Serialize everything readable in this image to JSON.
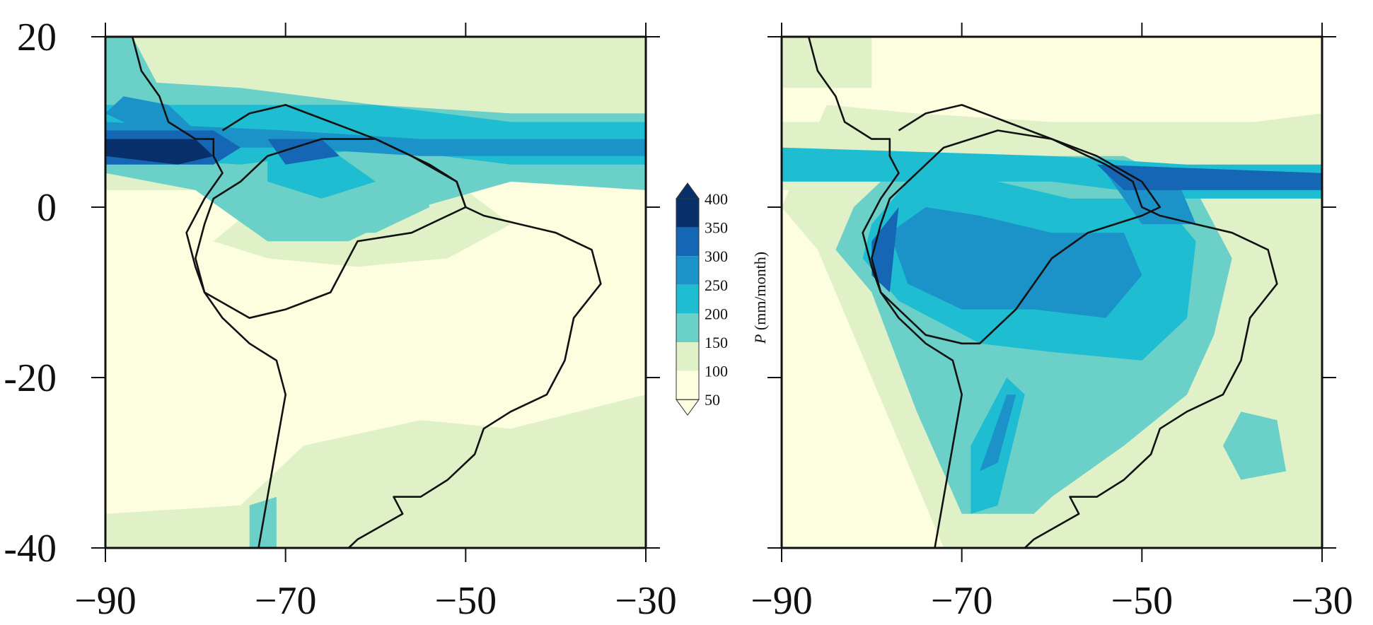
{
  "colors": {
    "background": "#ffffff",
    "frame": "#111111",
    "coastline": "#111111",
    "levels": [
      "#fdfde0",
      "#e0f1c8",
      "#6ad0c8",
      "#1fbdd1",
      "#1c93c8",
      "#1567b6",
      "#08306b"
    ]
  },
  "colorbar": {
    "title_var": "P",
    "title_unit": " (mm/month)",
    "tick_labels": [
      "50",
      "100",
      "150",
      "200",
      "250",
      "300",
      "350",
      "400"
    ],
    "extend": "both"
  },
  "axes": {
    "x_tick_labels": [
      "−90",
      "−70",
      "−50",
      "−30"
    ],
    "y_tick_labels": [
      "20",
      "0",
      "-20",
      "-40"
    ]
  },
  "chart_data": [
    {
      "type": "heatmap",
      "panel": "left",
      "xlim": [
        -90,
        -30
      ],
      "ylim": [
        -40,
        20
      ],
      "xticks": [
        -90,
        -70,
        -50,
        -30
      ],
      "yticks": [
        20,
        0,
        -20,
        -40
      ],
      "levels": [
        50,
        100,
        150,
        200,
        250,
        300,
        350,
        400
      ],
      "regions": [
        {
          "level": 1,
          "poly": [
            [
              -90,
              -36
            ],
            [
              -75,
              -35
            ],
            [
              -68,
              -28
            ],
            [
              -55,
              -25
            ],
            [
              -45,
              -26
            ],
            [
              -30,
              -22
            ],
            [
              -30,
              -40
            ],
            [
              -90,
              -40
            ]
          ]
        },
        {
          "level": 1,
          "poly": [
            [
              -90,
              20
            ],
            [
              -30,
              20
            ],
            [
              -30,
              10
            ],
            [
              -40,
              8
            ],
            [
              -50,
              4
            ],
            [
              -60,
              6
            ],
            [
              -70,
              3
            ],
            [
              -80,
              2
            ],
            [
              -90,
              2
            ]
          ]
        },
        {
          "level": 1,
          "poly": [
            [
              -70,
              3
            ],
            [
              -60,
              5
            ],
            [
              -50,
              2
            ],
            [
              -45,
              -2
            ],
            [
              -52,
              -6
            ],
            [
              -62,
              -7
            ],
            [
              -72,
              -6
            ],
            [
              -78,
              -4
            ]
          ]
        },
        {
          "level": 2,
          "poly": [
            [
              -90,
              15
            ],
            [
              -75,
              14
            ],
            [
              -60,
              12
            ],
            [
              -45,
              11
            ],
            [
              -30,
              11
            ],
            [
              -30,
              2
            ],
            [
              -45,
              3
            ],
            [
              -55,
              0
            ],
            [
              -63,
              -4
            ],
            [
              -72,
              -4
            ],
            [
              -80,
              2
            ],
            [
              -90,
              4
            ]
          ]
        },
        {
          "level": 2,
          "poly": [
            [
              -90,
              20
            ],
            [
              -87,
              20
            ],
            [
              -84,
              14
            ],
            [
              -88,
              12
            ],
            [
              -90,
              12
            ]
          ]
        },
        {
          "level": 2,
          "poly": [
            [
              -76,
              2
            ],
            [
              -70,
              6
            ],
            [
              -64,
              8
            ],
            [
              -56,
              6
            ],
            [
              -54,
              0
            ],
            [
              -60,
              -3
            ],
            [
              -68,
              -3
            ],
            [
              -74,
              -2
            ]
          ]
        },
        {
          "level": 2,
          "poly": [
            [
              -74,
              -35
            ],
            [
              -71,
              -34
            ],
            [
              -71,
              -40
            ],
            [
              -74,
              -40
            ]
          ]
        },
        {
          "level": 3,
          "poly": [
            [
              -90,
              12
            ],
            [
              -60,
              12
            ],
            [
              -45,
              10
            ],
            [
              -30,
              10
            ],
            [
              -30,
              5
            ],
            [
              -45,
              5
            ],
            [
              -60,
              7
            ],
            [
              -75,
              5
            ],
            [
              -90,
              6
            ]
          ]
        },
        {
          "level": 3,
          "poly": [
            [
              -72,
              7
            ],
            [
              -64,
              6
            ],
            [
              -60,
              3
            ],
            [
              -66,
              1
            ],
            [
              -72,
              3
            ]
          ]
        },
        {
          "level": 4,
          "poly": [
            [
              -90,
              10
            ],
            [
              -70,
              9
            ],
            [
              -55,
              8
            ],
            [
              -30,
              8
            ],
            [
              -30,
              6
            ],
            [
              -55,
              6
            ],
            [
              -70,
              7
            ],
            [
              -90,
              7
            ]
          ]
        },
        {
          "level": 4,
          "poly": [
            [
              -88,
              13
            ],
            [
              -83,
              12
            ],
            [
              -80,
              9
            ],
            [
              -86,
              9
            ],
            [
              -90,
              11
            ]
          ]
        },
        {
          "level": 5,
          "poly": [
            [
              -90,
              9
            ],
            [
              -78,
              9
            ],
            [
              -75,
              7
            ],
            [
              -78,
              5
            ],
            [
              -90,
              5
            ]
          ]
        },
        {
          "level": 5,
          "poly": [
            [
              -72,
              8
            ],
            [
              -66,
              8
            ],
            [
              -64,
              6
            ],
            [
              -70,
              5
            ]
          ]
        },
        {
          "level": 6,
          "poly": [
            [
              -90,
              8
            ],
            [
              -80,
              8
            ],
            [
              -78,
              6
            ],
            [
              -82,
              5
            ],
            [
              -90,
              6
            ]
          ]
        }
      ]
    },
    {
      "type": "heatmap",
      "panel": "right",
      "xlim": [
        -90,
        -30
      ],
      "ylim": [
        -40,
        20
      ],
      "xticks": [
        -90,
        -70,
        -50,
        -30
      ],
      "yticks": [
        20,
        0,
        -20,
        -40
      ],
      "levels": [
        50,
        100,
        150,
        200,
        250,
        300,
        350,
        400
      ],
      "regions": [
        {
          "level": 1,
          "poly": [
            [
              -90,
              20
            ],
            [
              -80,
              20
            ],
            [
              -80,
              14
            ],
            [
              -90,
              14
            ]
          ]
        },
        {
          "level": 1,
          "poly": [
            [
              -90,
              10
            ],
            [
              -30,
              10
            ],
            [
              -30,
              2
            ],
            [
              -90,
              2
            ]
          ]
        },
        {
          "level": 1,
          "poly": [
            [
              -85,
              12
            ],
            [
              -75,
              11
            ],
            [
              -60,
              10
            ],
            [
              -45,
              9
            ],
            [
              -30,
              11
            ],
            [
              -30,
              -40
            ],
            [
              -72,
              -40
            ],
            [
              -80,
              -20
            ],
            [
              -86,
              -5
            ],
            [
              -90,
              0
            ]
          ]
        },
        {
          "level": 2,
          "poly": [
            [
              -82,
              0
            ],
            [
              -76,
              6
            ],
            [
              -64,
              6
            ],
            [
              -52,
              6
            ],
            [
              -44,
              2
            ],
            [
              -40,
              -6
            ],
            [
              -42,
              -15
            ],
            [
              -45,
              -22
            ],
            [
              -52,
              -28
            ],
            [
              -60,
              -34
            ],
            [
              -62,
              -36
            ],
            [
              -70,
              -36
            ],
            [
              -75,
              -24
            ],
            [
              -80,
              -10
            ],
            [
              -84,
              -5
            ]
          ]
        },
        {
          "level": 2,
          "poly": [
            [
              -39,
              -24
            ],
            [
              -35,
              -25
            ],
            [
              -34,
              -31
            ],
            [
              -39,
              -32
            ],
            [
              -41,
              -28
            ]
          ]
        },
        {
          "level": 3,
          "poly": [
            [
              -80,
              -2
            ],
            [
              -76,
              3
            ],
            [
              -66,
              3
            ],
            [
              -58,
              1
            ],
            [
              -48,
              1
            ],
            [
              -44,
              -4
            ],
            [
              -45,
              -13
            ],
            [
              -50,
              -18
            ],
            [
              -60,
              -17
            ],
            [
              -68,
              -16
            ],
            [
              -77,
              -11
            ],
            [
              -81,
              -6
            ]
          ]
        },
        {
          "level": 3,
          "poly": [
            [
              -90,
              7
            ],
            [
              -60,
              6
            ],
            [
              -45,
              5
            ],
            [
              -30,
              5
            ],
            [
              -30,
              1
            ],
            [
              -45,
              1
            ],
            [
              -60,
              3
            ],
            [
              -90,
              3
            ]
          ]
        },
        {
          "level": 3,
          "poly": [
            [
              -69,
              -28
            ],
            [
              -65,
              -20
            ],
            [
              -63,
              -22
            ],
            [
              -66,
              -35
            ],
            [
              -69,
              -36
            ]
          ]
        },
        {
          "level": 4,
          "poly": [
            [
              -78,
              -3
            ],
            [
              -74,
              0
            ],
            [
              -68,
              -1
            ],
            [
              -60,
              -3
            ],
            [
              -52,
              -3
            ],
            [
              -50,
              -8
            ],
            [
              -54,
              -13
            ],
            [
              -62,
              -12
            ],
            [
              -70,
              -12
            ],
            [
              -76,
              -9
            ]
          ]
        },
        {
          "level": 4,
          "poly": [
            [
              -54,
              4
            ],
            [
              -46,
              3
            ],
            [
              -44,
              -2
            ],
            [
              -50,
              -2
            ]
          ]
        },
        {
          "level": 4,
          "poly": [
            [
              -68,
              -31
            ],
            [
              -65,
              -22
            ],
            [
              -64,
              -22
            ],
            [
              -66,
              -30
            ]
          ]
        },
        {
          "level": 5,
          "poly": [
            [
              -55,
              5
            ],
            [
              -30,
              4
            ],
            [
              -30,
              2
            ],
            [
              -52,
              2
            ]
          ]
        },
        {
          "level": 5,
          "poly": [
            [
              -80,
              -4
            ],
            [
              -77,
              0
            ],
            [
              -78,
              -10
            ],
            [
              -80,
              -8
            ]
          ]
        }
      ]
    }
  ],
  "coastlines": {
    "pacific": [
      [
        -87,
        20
      ],
      [
        -86,
        16
      ],
      [
        -84,
        13
      ],
      [
        -83,
        10
      ],
      [
        -80,
        8
      ],
      [
        -78,
        8
      ],
      [
        -78,
        6
      ],
      [
        -77,
        4
      ],
      [
        -79,
        1
      ],
      [
        -81,
        -3
      ],
      [
        -80,
        -7
      ],
      [
        -79,
        -10
      ],
      [
        -77,
        -13
      ],
      [
        -74,
        -16
      ],
      [
        -71,
        -18
      ],
      [
        -70,
        -22
      ],
      [
        -71,
        -28
      ],
      [
        -72,
        -34
      ],
      [
        -73,
        -40
      ]
    ],
    "atlantic": [
      [
        -77,
        9
      ],
      [
        -74,
        11
      ],
      [
        -70,
        12
      ],
      [
        -65,
        10
      ],
      [
        -60,
        8
      ],
      [
        -54,
        5
      ],
      [
        -51,
        3
      ],
      [
        -50,
        0
      ],
      [
        -48,
        -1
      ],
      [
        -44,
        -2
      ],
      [
        -40,
        -3
      ],
      [
        -36,
        -5
      ],
      [
        -35,
        -9
      ],
      [
        -38,
        -13
      ],
      [
        -39,
        -18
      ],
      [
        -41,
        -22
      ],
      [
        -45,
        -24
      ],
      [
        -48,
        -26
      ],
      [
        -49,
        -29
      ],
      [
        -52,
        -32
      ],
      [
        -55,
        -34
      ],
      [
        -58,
        -34
      ],
      [
        -57,
        -36
      ],
      [
        -62,
        -39
      ],
      [
        -63,
        -40
      ]
    ],
    "amazon_boundary": [
      [
        -51,
        3
      ],
      [
        -50,
        0
      ],
      [
        -52,
        -1
      ],
      [
        -56,
        -3
      ],
      [
        -62,
        -4
      ],
      [
        -65,
        -10
      ],
      [
        -70,
        -12
      ],
      [
        -74,
        -13
      ],
      [
        -79,
        -10
      ],
      [
        -80,
        -6
      ],
      [
        -79,
        -2
      ],
      [
        -78,
        1
      ],
      [
        -75,
        3
      ],
      [
        -72,
        6
      ],
      [
        -66,
        8
      ],
      [
        -60,
        8
      ],
      [
        -56,
        6
      ],
      [
        -51,
        3
      ]
    ],
    "amazon_boundary_right": [
      [
        -50,
        3
      ],
      [
        -48,
        0
      ],
      [
        -50,
        -1
      ],
      [
        -56,
        -3
      ],
      [
        -60,
        -6
      ],
      [
        -64,
        -12
      ],
      [
        -68,
        -16
      ],
      [
        -70,
        -16
      ],
      [
        -74,
        -15
      ],
      [
        -79,
        -10
      ],
      [
        -80,
        -6
      ],
      [
        -79,
        -2
      ],
      [
        -78,
        1
      ],
      [
        -75,
        4
      ],
      [
        -72,
        7
      ],
      [
        -66,
        9
      ],
      [
        -60,
        8
      ],
      [
        -55,
        6
      ],
      [
        -50,
        3
      ]
    ]
  }
}
